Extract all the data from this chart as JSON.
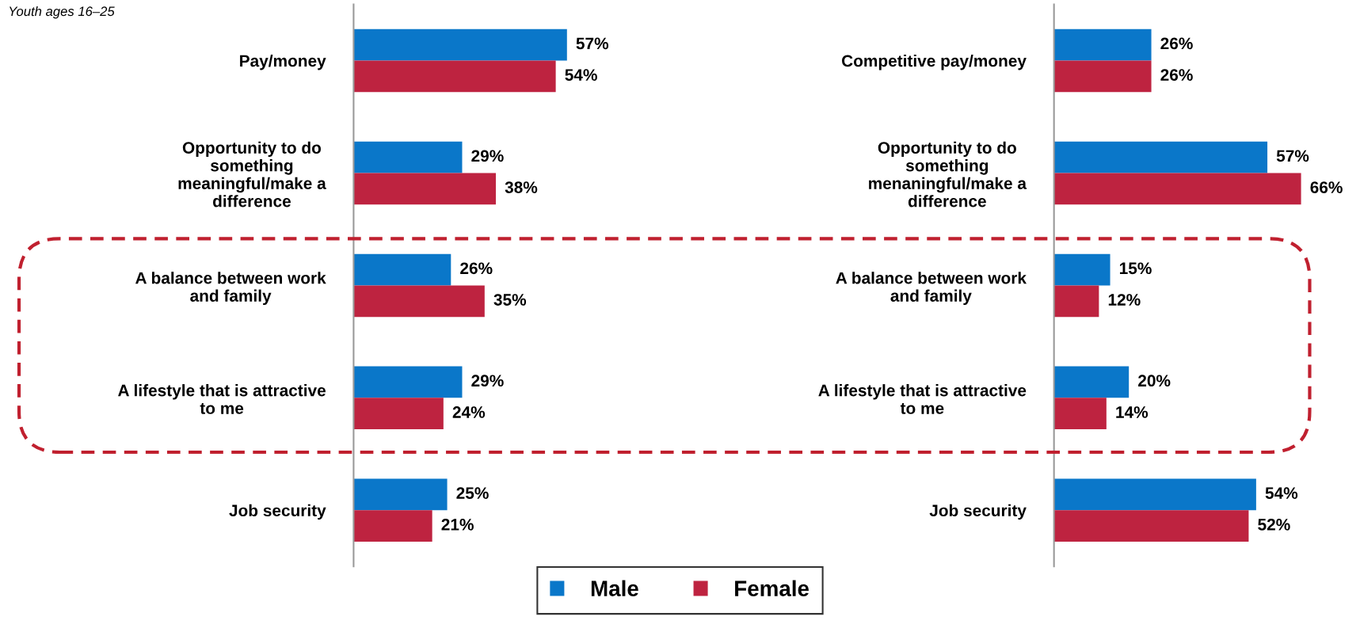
{
  "chart_data": [
    {
      "type": "bar",
      "orientation": "horizontal",
      "subtitle": "Youth ages 16–25",
      "categories": [
        "Pay/money",
        "Opportunity to do\nsomething\nmeaningful/make a\ndifference",
        "A balance between work\nand family",
        "A lifestyle that is attractive\nto me",
        "Job security"
      ],
      "series": [
        {
          "name": "Male",
          "color": "#0a77c9",
          "values": [
            57,
            29,
            26,
            29,
            25
          ],
          "value_labels": [
            "57%",
            "29%",
            "26%",
            "29%",
            "25%"
          ]
        },
        {
          "name": "Female",
          "color": "#be2340",
          "values": [
            54,
            38,
            35,
            24,
            21
          ],
          "value_labels": [
            "54%",
            "38%",
            "35%",
            "24%",
            "21%"
          ]
        }
      ],
      "tick_labels": "y",
      "grid": false,
      "legend": "bottom"
    },
    {
      "type": "bar",
      "orientation": "horizontal",
      "categories": [
        "Competitive pay/money",
        "Opportunity to do\nsomething\nmenaningful/make a\ndifference",
        "A balance between work\nand family",
        "A lifestyle that is attractive\nto me",
        "Job security"
      ],
      "series": [
        {
          "name": "Male",
          "color": "#0a77c9",
          "values": [
            26,
            57,
            15,
            20,
            54
          ],
          "value_labels": [
            "26%",
            "57%",
            "15%",
            "20%",
            "54%"
          ]
        },
        {
          "name": "Female",
          "color": "#be2340",
          "values": [
            26,
            66,
            12,
            14,
            52
          ],
          "value_labels": [
            "26%",
            "66%",
            "12%",
            "14%",
            "52%"
          ]
        }
      ],
      "tick_labels": "y",
      "grid": false,
      "legend": "bottom"
    }
  ]
}
